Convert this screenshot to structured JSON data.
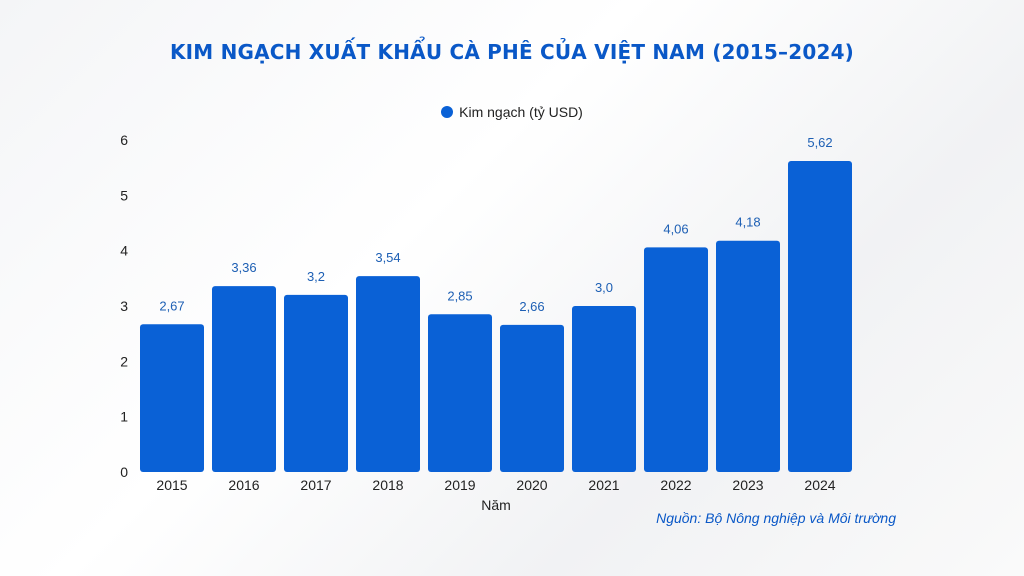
{
  "chart_data": {
    "type": "bar",
    "title": "KIM NGẠCH XUẤT KHẨU CÀ PHÊ CỦA VIỆT NAM (2015–2024)",
    "xlabel": "Năm",
    "ylabel": "",
    "categories": [
      "2015",
      "2016",
      "2017",
      "2018",
      "2019",
      "2020",
      "2021",
      "2022",
      "2023",
      "2024"
    ],
    "series": [
      {
        "name": "Kim ngạch (tỷ USD)",
        "values": [
          2.67,
          3.36,
          3.2,
          3.54,
          2.85,
          2.66,
          3.0,
          4.06,
          4.18,
          5.62
        ],
        "labels": [
          "2,67",
          "3,36",
          "3,2",
          "3,54",
          "2,85",
          "2,66",
          "3,0",
          "4,06",
          "4,18",
          "5,62"
        ],
        "color": "#0a61d6"
      }
    ],
    "ylim": [
      0,
      6
    ],
    "yticks": [
      "0",
      "1",
      "2",
      "3",
      "4",
      "5",
      "6"
    ],
    "grid": false,
    "legend": "top-center",
    "source": "Nguồn: Bộ Nông nghiệp và Môi trường"
  },
  "colors": {
    "bar": "#0a61d6",
    "title": "#0a58c7",
    "data_label": "#1d5fb4",
    "axis": "#222222"
  }
}
